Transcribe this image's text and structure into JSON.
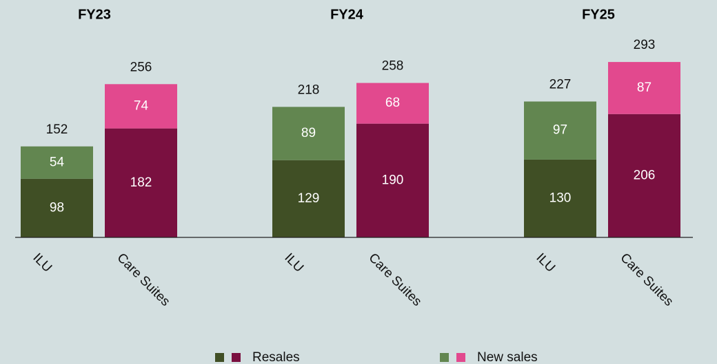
{
  "chart_data": {
    "type": "bar",
    "stacked": true,
    "groups": [
      "FY23",
      "FY24",
      "FY25"
    ],
    "categories": [
      "ILU",
      "Care Suites",
      "ILU",
      "Care Suites",
      "ILU",
      "Care Suites"
    ],
    "series": [
      {
        "name": "Resales",
        "colors": [
          "#404f25",
          "#7a1040"
        ],
        "values": [
          98,
          182,
          129,
          190,
          130,
          206
        ]
      },
      {
        "name": "New sales",
        "colors": [
          "#628650",
          "#e2498e"
        ],
        "values": [
          54,
          74,
          89,
          68,
          97,
          87
        ]
      }
    ],
    "totals": [
      152,
      256,
      218,
      258,
      227,
      293
    ]
  }
}
